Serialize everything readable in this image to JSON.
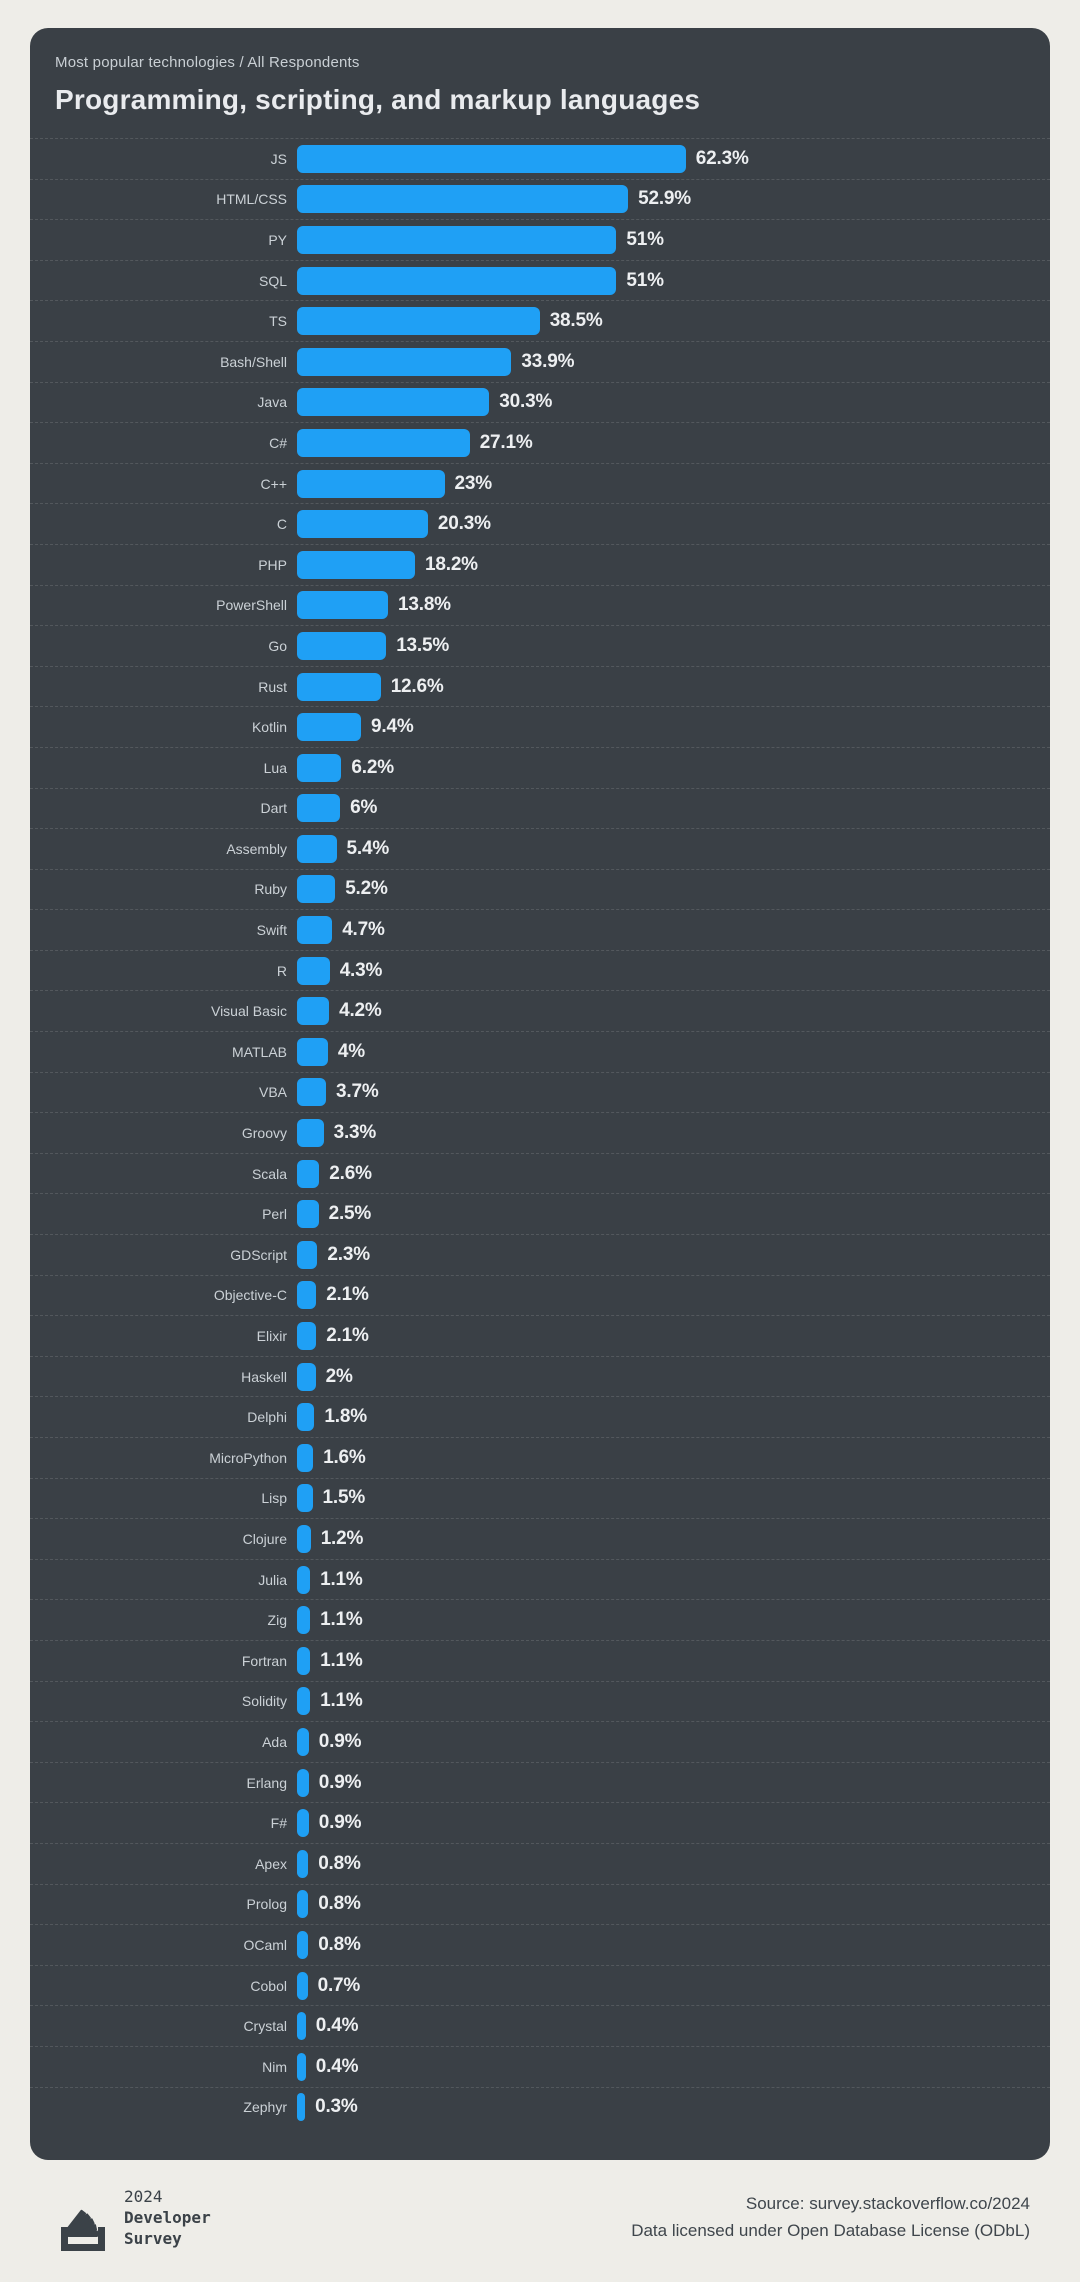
{
  "theme": {
    "page_background": "#eeede8",
    "card_background": "#3a4046",
    "bar_color": "#1fa0f5",
    "label_color": "#cbd1d6",
    "value_color": "#edeff1",
    "eyebrow_color": "#c9cfd4",
    "title_color": "#e9ebee",
    "separator_color": "rgba(255,255,255,0.13)",
    "footer_text_color": "#3f464c",
    "logo_color": "#3b4248"
  },
  "card": {
    "eyebrow": "Most popular technologies / All Respondents",
    "title": "Programming, scripting, and markup languages"
  },
  "chart_data": {
    "type": "bar",
    "orientation": "horizontal",
    "title": "Programming, scripting, and markup languages",
    "subtitle": "Most popular technologies / All Respondents",
    "xlabel": "",
    "ylabel": "",
    "xlim": [
      0,
      64
    ],
    "grid": false,
    "legend": "none",
    "unit": "%",
    "categories": [
      "JS",
      "HTML/CSS",
      "PY",
      "SQL",
      "TS",
      "Bash/Shell",
      "Java",
      "C#",
      "C++",
      "C",
      "PHP",
      "PowerShell",
      "Go",
      "Rust",
      "Kotlin",
      "Lua",
      "Dart",
      "Assembly",
      "Ruby",
      "Swift",
      "R",
      "Visual Basic",
      "MATLAB",
      "VBA",
      "Groovy",
      "Scala",
      "Perl",
      "GDScript",
      "Objective-C",
      "Elixir",
      "Haskell",
      "Delphi",
      "MicroPython",
      "Lisp",
      "Clojure",
      "Julia",
      "Zig",
      "Fortran",
      "Solidity",
      "Ada",
      "Erlang",
      "F#",
      "Apex",
      "Prolog",
      "OCaml",
      "Cobol",
      "Crystal",
      "Nim",
      "Zephyr"
    ],
    "values": [
      62.3,
      52.9,
      51,
      51,
      38.5,
      33.9,
      30.3,
      27.1,
      23,
      20.3,
      18.2,
      13.8,
      13.5,
      12.6,
      9.4,
      6.2,
      6,
      5.4,
      5.2,
      4.7,
      4.3,
      4.2,
      4,
      3.7,
      3.3,
      2.6,
      2.5,
      2.3,
      2.1,
      2.1,
      2,
      1.8,
      1.6,
      1.5,
      1.2,
      1.1,
      1.1,
      1.1,
      1.1,
      0.9,
      0.9,
      0.9,
      0.8,
      0.8,
      0.8,
      0.7,
      0.4,
      0.4,
      0.3
    ],
    "value_labels": [
      "62.3%",
      "52.9%",
      "51%",
      "51%",
      "38.5%",
      "33.9%",
      "30.3%",
      "27.1%",
      "23%",
      "20.3%",
      "18.2%",
      "13.8%",
      "13.5%",
      "12.6%",
      "9.4%",
      "6.2%",
      "6%",
      "5.4%",
      "5.2%",
      "4.7%",
      "4.3%",
      "4.2%",
      "4%",
      "3.7%",
      "3.3%",
      "2.6%",
      "2.5%",
      "2.3%",
      "2.1%",
      "2.1%",
      "2%",
      "1.8%",
      "1.6%",
      "1.5%",
      "1.2%",
      "1.1%",
      "1.1%",
      "1.1%",
      "1.1%",
      "0.9%",
      "0.9%",
      "0.9%",
      "0.8%",
      "0.8%",
      "0.8%",
      "0.7%",
      "0.4%",
      "0.4%",
      "0.3%"
    ]
  },
  "footer": {
    "logo_icon": "stackoverflow-logo",
    "logo_line1": "2024",
    "logo_line2": "Developer",
    "logo_line3": "Survey",
    "source_line1": "Source: survey.stackoverflow.co/2024",
    "source_line2": "Data licensed under Open Database License (ODbL)"
  }
}
